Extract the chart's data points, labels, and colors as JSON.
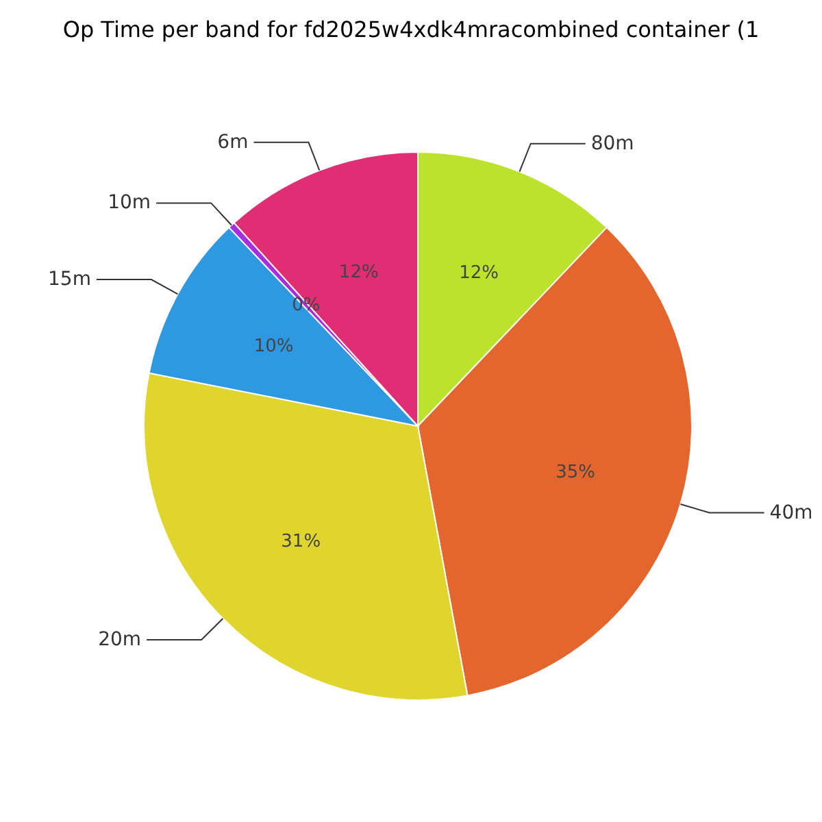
{
  "chart_data": {
    "type": "pie",
    "title": "Op Time per band for fd2025w4xdk4mracombined container (1",
    "categories": [
      "80m",
      "40m",
      "20m",
      "15m",
      "10m",
      "6m"
    ],
    "values": [
      12.1,
      35,
      31,
      9.8,
      0.4,
      11.7
    ],
    "colors": [
      "#bde22e",
      "#e2662e",
      "#e0d52e",
      "#2e98e0",
      "#a62ee0",
      "#e02e75"
    ],
    "value_labels": [
      "12%",
      "35%",
      "31%",
      "10%",
      "0%",
      "12%"
    ]
  }
}
